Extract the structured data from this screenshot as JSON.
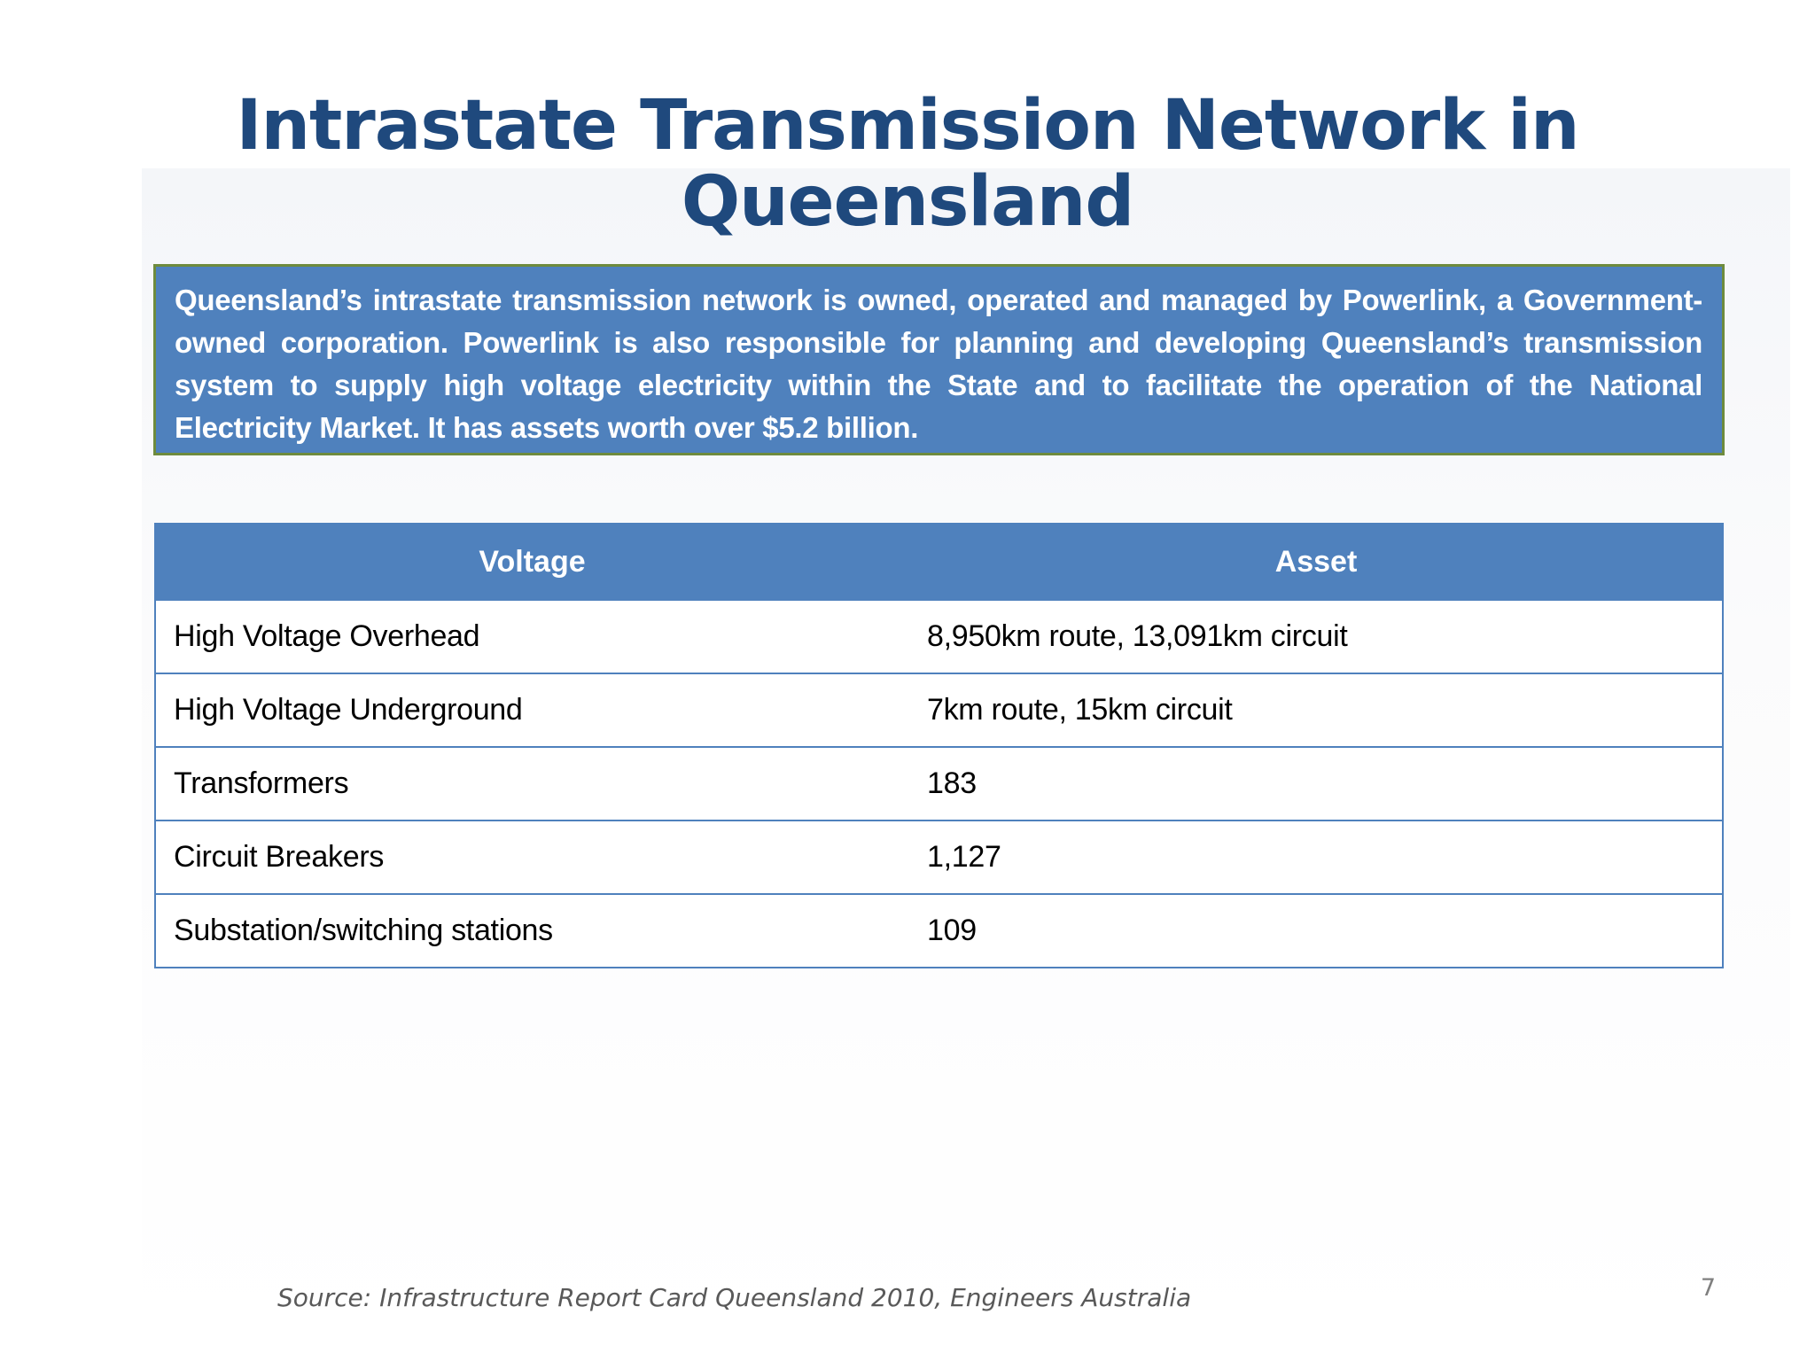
{
  "slide": {
    "title": "Intrastate Transmission Network in Queensland",
    "intro": "Queensland’s intrastate transmission network is owned, operated and managed by Powerlink, a Government-owned corporation. Powerlink is also responsible for planning and developing Queensland’s transmission system to supply high voltage electricity within the State and to facilitate the operation of the National Electricity Market. It has assets worth over $5.2 billion.",
    "table": {
      "headers": [
        "Voltage",
        "Asset"
      ],
      "rows": [
        [
          "High Voltage Overhead",
          "8,950km route, 13,091km circuit"
        ],
        [
          "High Voltage Underground",
          "7km route, 15km circuit"
        ],
        [
          "Transformers",
          "183"
        ],
        [
          "Circuit Breakers",
          "1,127"
        ],
        [
          "Substation/switching stations",
          "109"
        ]
      ]
    },
    "source": "Source: Infrastructure Report Card Queensland 2010, Engineers Australia",
    "page_number": "7"
  },
  "colors": {
    "title": "#1f497d",
    "accent_blue": "#4f81bd",
    "box_border": "#6e8b3d",
    "source_text": "#595959"
  }
}
